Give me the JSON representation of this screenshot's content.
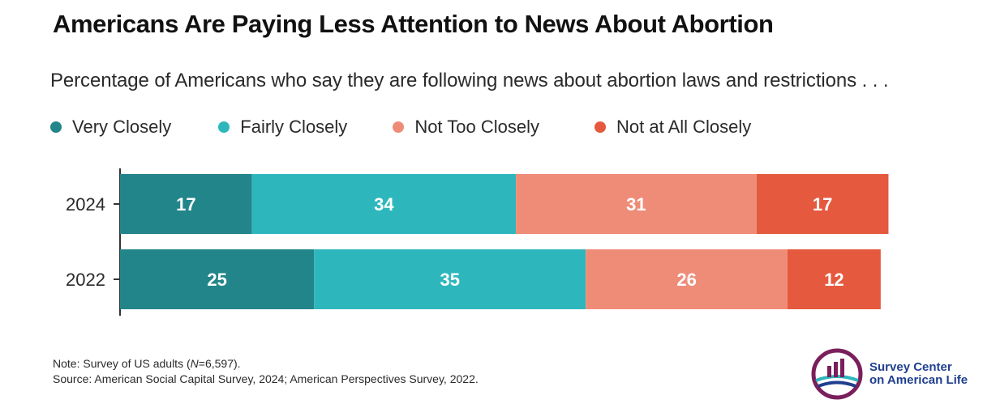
{
  "title": "Americans Are Paying Less Attention to News About Abortion",
  "subtitle": "Percentage of Americans who say they are following news about abortion laws and restrictions . . .",
  "legend": [
    {
      "label": "Very Closely",
      "color": "#22858a"
    },
    {
      "label": "Fairly Closely",
      "color": "#2db7bd"
    },
    {
      "label": "Not Too Closely",
      "color": "#ef8c78"
    },
    {
      "label": "Not at All Closely",
      "color": "#e5593e"
    }
  ],
  "chart_data": {
    "type": "bar",
    "orientation": "horizontal",
    "stacked": true,
    "categories": [
      "2024",
      "2022"
    ],
    "series": [
      {
        "name": "Very Closely",
        "values": [
          17,
          25
        ],
        "color": "#22858a"
      },
      {
        "name": "Fairly Closely",
        "values": [
          34,
          35
        ],
        "color": "#2db7bd"
      },
      {
        "name": "Not Too Closely",
        "values": [
          31,
          26
        ],
        "color": "#ef8c78"
      },
      {
        "name": "Not at All Closely",
        "values": [
          17,
          12
        ],
        "color": "#e5593e"
      }
    ],
    "xlim": [
      0,
      100
    ],
    "data_labels": true,
    "grid": false,
    "legend_position": "top-left"
  },
  "note": {
    "prefix": "Note: Survey of US adults (",
    "n_symbol": "N",
    "suffix": "=6,597).",
    "source": "Source: American Social Capital Survey, 2024; American Perspectives Survey, 2022."
  },
  "logo": {
    "line1": "Survey Center",
    "line2": "on American Life"
  }
}
